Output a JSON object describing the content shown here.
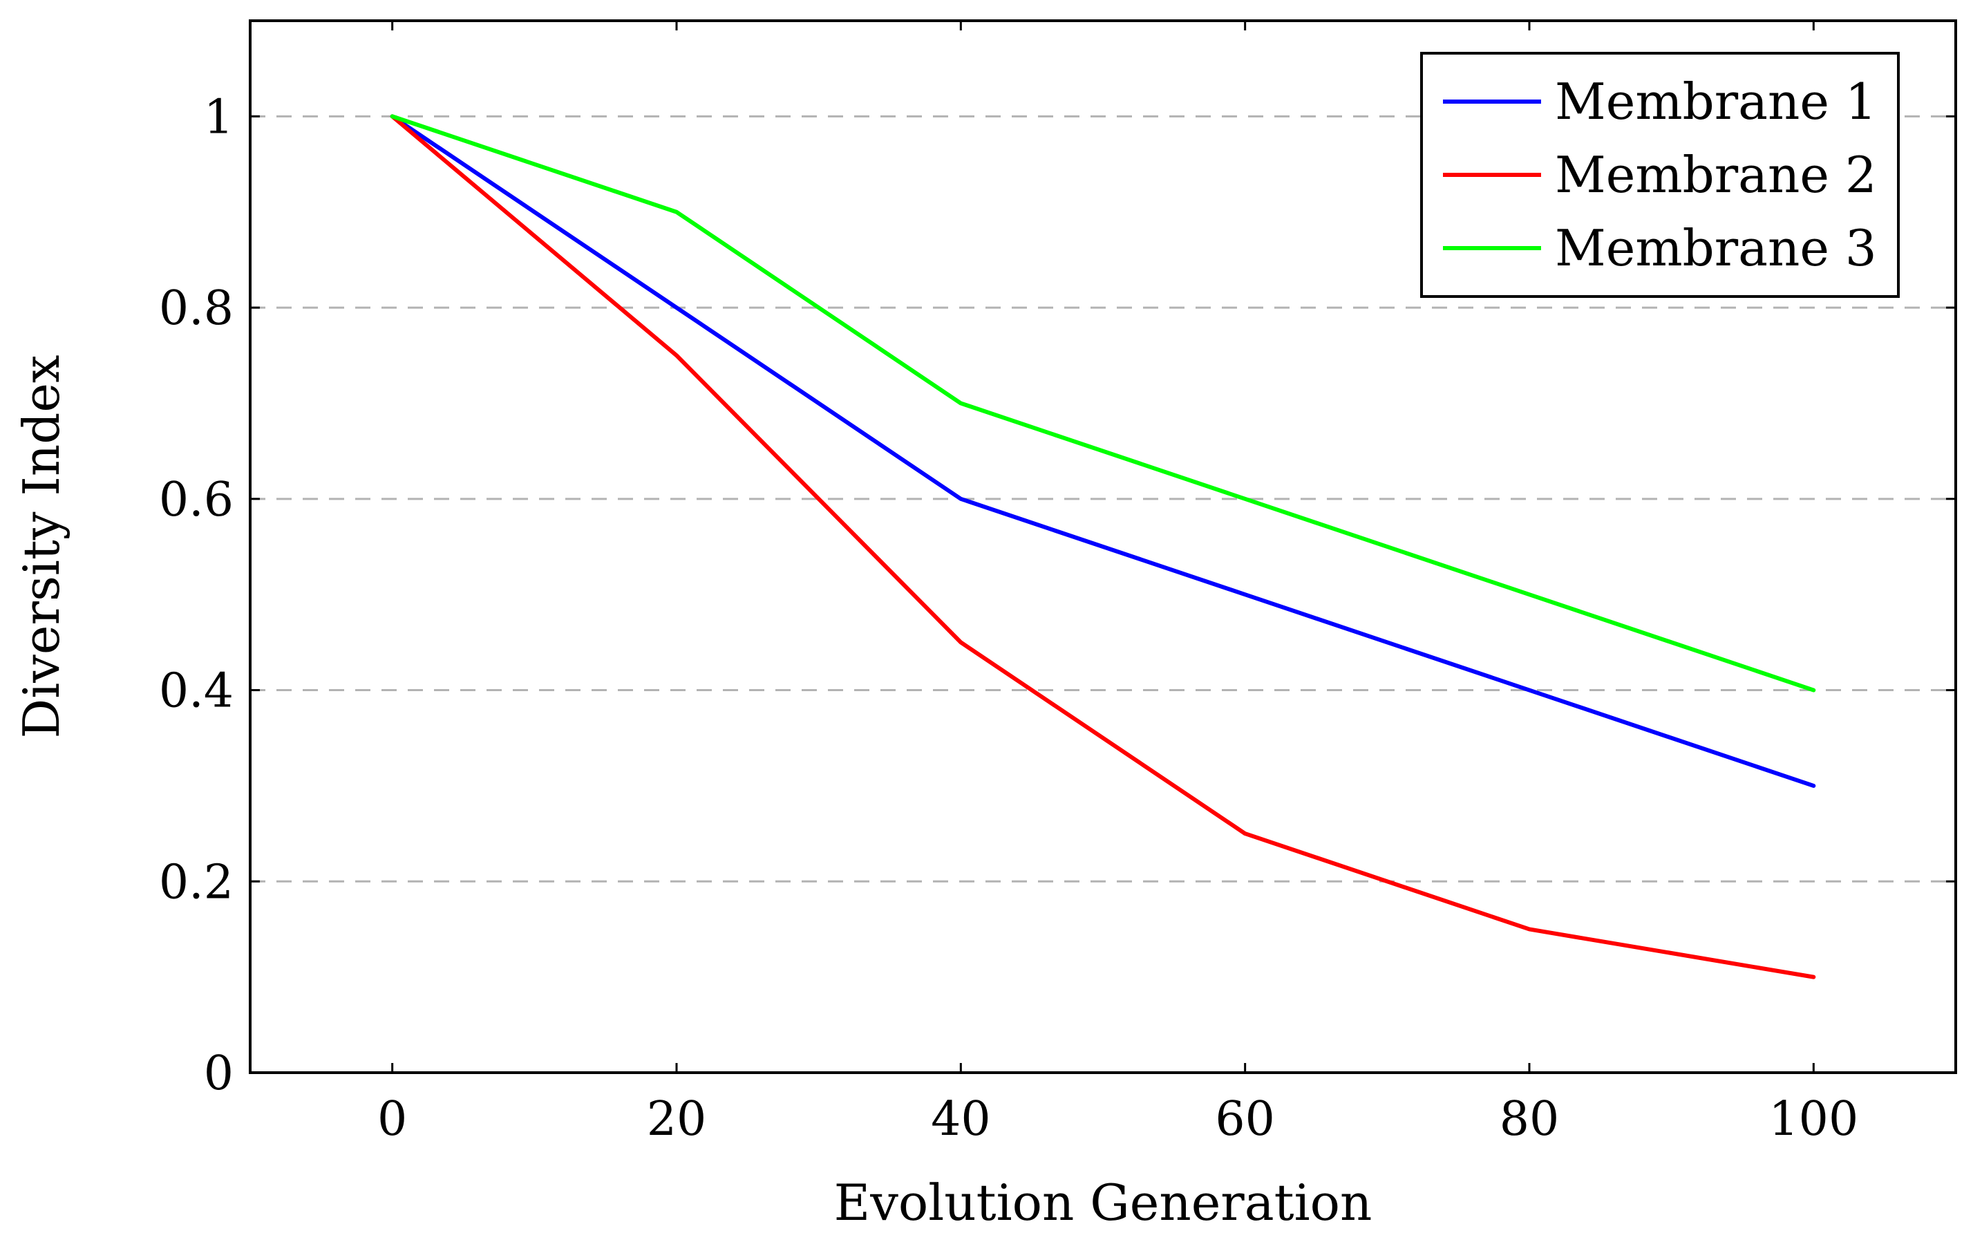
{
  "chart_data": {
    "type": "line",
    "title": "",
    "xlabel": "Evolution Generation",
    "ylabel": "Diversity Index",
    "xlim": [
      -10,
      110
    ],
    "ylim": [
      0,
      1.1
    ],
    "xticks": [
      0,
      20,
      40,
      60,
      80,
      100
    ],
    "yticks": [
      0,
      0.2,
      0.4,
      0.6,
      0.8,
      1
    ],
    "xtick_labels": [
      "0",
      "20",
      "40",
      "60",
      "80",
      "100"
    ],
    "ytick_labels": [
      "0",
      "0.2",
      "0.4",
      "0.6",
      "0.8",
      "1"
    ],
    "grid": "horizontal dashed",
    "legend_position": "top-right",
    "x": [
      0,
      20,
      40,
      60,
      80,
      100
    ],
    "series": [
      {
        "name": "Membrane 1",
        "color": "#0000ff",
        "values": [
          1.0,
          0.8,
          0.6,
          0.5,
          0.4,
          0.3
        ]
      },
      {
        "name": "Membrane 2",
        "color": "#ff0000",
        "values": [
          1.0,
          0.75,
          0.45,
          0.25,
          0.15,
          0.1
        ]
      },
      {
        "name": "Membrane 3",
        "color": "#00ff00",
        "values": [
          1.0,
          0.9,
          0.7,
          0.6,
          0.5,
          0.4
        ]
      }
    ]
  }
}
